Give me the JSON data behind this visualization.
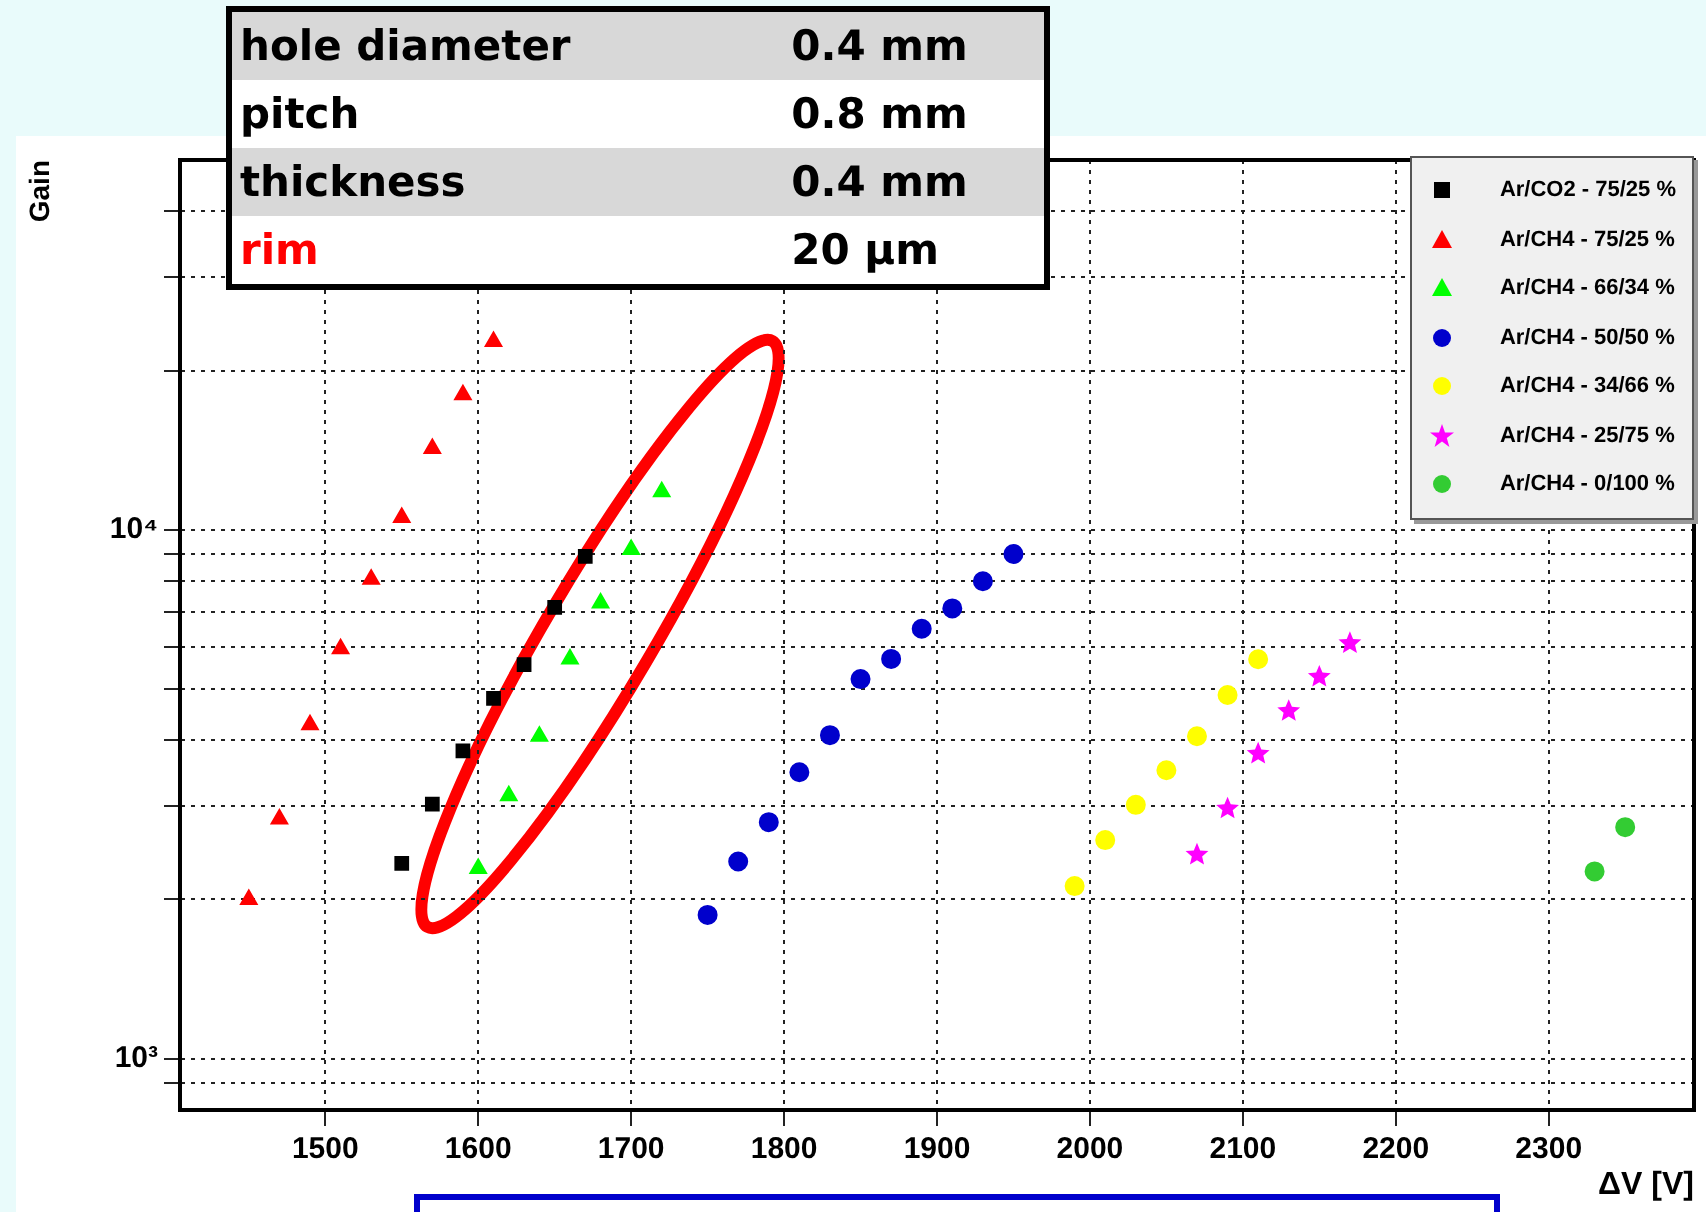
{
  "chart_data": {
    "type": "scatter",
    "xlabel": "ΔV [V]",
    "ylabel": "Gain",
    "xlim": [
      1405,
      2395
    ],
    "xticks": [
      1500,
      1600,
      1700,
      1800,
      1900,
      2000,
      2100,
      2200,
      2300
    ],
    "ylim": [
      800,
      50000
    ],
    "log": "y",
    "yticks": [
      {
        "value": 900,
        "label": null
      },
      {
        "value": 1000,
        "label": "10³"
      },
      {
        "value": 2000,
        "label": null
      },
      {
        "value": 3000,
        "label": null
      },
      {
        "value": 4000,
        "label": null
      },
      {
        "value": 5000,
        "label": null
      },
      {
        "value": 6000,
        "label": null
      },
      {
        "value": 7000,
        "label": null
      },
      {
        "value": 8000,
        "label": null
      },
      {
        "value": 9000,
        "label": null
      },
      {
        "value": 10000,
        "label": "10⁴"
      },
      {
        "value": 20000,
        "label": null
      },
      {
        "value": 30000,
        "label": null
      },
      {
        "value": 40000,
        "label": null
      }
    ],
    "grid": true,
    "legend": "top right",
    "annotations": [
      "hole diameter",
      "0.4 mm",
      "pitch",
      "0.8 mm",
      "thickness",
      "0.4 mm",
      "rim",
      "20 µm"
    ],
    "series": [
      {
        "name": "Ar/CO2 - 75/25 %",
        "color": "#000000",
        "marker": "square",
        "x": [
          1550,
          1570,
          1590,
          1610,
          1630,
          1650,
          1670
        ],
        "values": [
          2340,
          3030,
          3820,
          4800,
          5560,
          7130,
          8910
        ]
      },
      {
        "name": "Ar/CH4 - 75/25 %",
        "color": "#ff0000",
        "marker": "triangle",
        "x": [
          1450,
          1470,
          1490,
          1510,
          1530,
          1550,
          1570,
          1590,
          1610
        ],
        "values": [
          2000,
          2840,
          4280,
          5960,
          8060,
          10550,
          14250,
          18000,
          22700
        ]
      },
      {
        "name": "Ar/CH4 - 66/34 %",
        "color": "#00ff00",
        "marker": "triangle",
        "x": [
          1600,
          1620,
          1640,
          1660,
          1680,
          1700,
          1720
        ],
        "values": [
          2290,
          3140,
          4070,
          5700,
          7270,
          9180,
          11800
        ]
      },
      {
        "name": "Ar/CH4 - 50/50 %",
        "color": "#0000cc",
        "marker": "circle",
        "x": [
          1750,
          1770,
          1790,
          1810,
          1830,
          1850,
          1870,
          1890,
          1910,
          1930,
          1950
        ],
        "values": [
          1870,
          2360,
          2800,
          3480,
          4090,
          5220,
          5700,
          6500,
          7100,
          7990,
          9000
        ]
      },
      {
        "name": "Ar/CH4 - 34/66 %",
        "color": "#ffff00",
        "marker": "circle",
        "x": [
          1990,
          2010,
          2030,
          2050,
          2070,
          2090,
          2110
        ],
        "values": [
          2120,
          2590,
          3020,
          3510,
          4070,
          4870,
          5690
        ]
      },
      {
        "name": "Ar/CH4 - 25/75 %",
        "color": "#ff00ff",
        "marker": "star",
        "x": [
          2070,
          2090,
          2110,
          2130,
          2150,
          2170
        ],
        "values": [
          2430,
          2970,
          3770,
          4540,
          5270,
          6100
        ]
      },
      {
        "name": "Ar/CH4 - 0/100 %",
        "color": "#33cc33",
        "marker": "circle",
        "x": [
          2330,
          2350
        ],
        "values": [
          2260,
          2740
        ]
      }
    ]
  }
}
